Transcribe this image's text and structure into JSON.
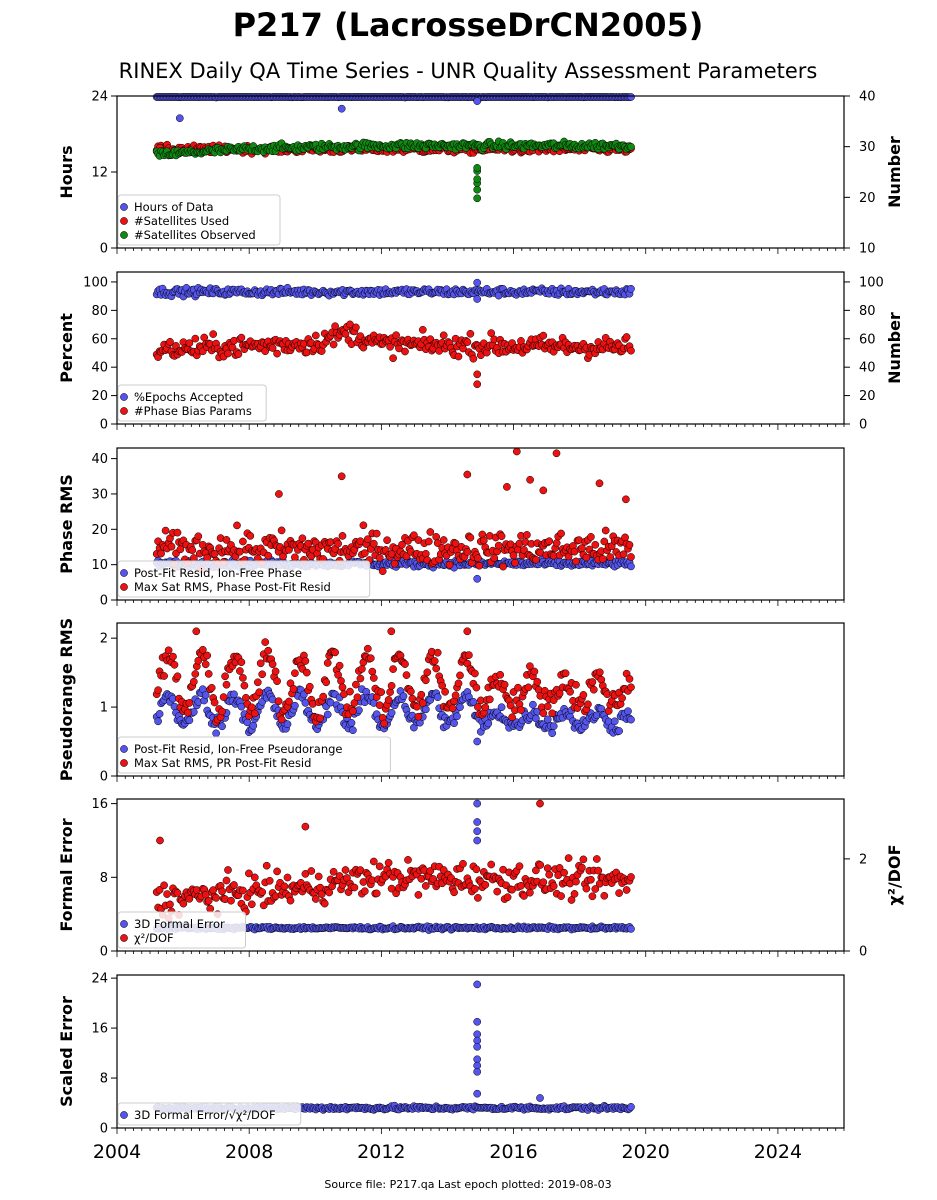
{
  "figure": {
    "title": "P217 (LacrosseDrCN2005)",
    "subtitle": "RINEX Daily QA Time Series - UNR Quality Assessment Parameters",
    "footer": "Source file: P217.qa Last epoch plotted: 2019-08-03",
    "x_ticks": [
      "2004",
      "2008",
      "2012",
      "2016",
      "2020",
      "2024"
    ]
  },
  "colors": {
    "blue": "#5555ee",
    "red": "#ee1111",
    "green": "#118811",
    "edge": "#000000"
  },
  "chart_data": [
    {
      "type": "scatter",
      "ylabel": "Hours",
      "ylabel_right": "Number",
      "xlim": [
        2004,
        2026
      ],
      "ylim": [
        0,
        24
      ],
      "ylim_right": [
        10,
        40
      ],
      "yticks": [
        "0",
        "12",
        "24"
      ],
      "yticks_right": [
        "10",
        "20",
        "30",
        "40"
      ],
      "legend": "lower-left",
      "series": [
        {
          "name": "Hours of Data",
          "axis": "left",
          "color": "blue",
          "base": 23.9,
          "spread": 0.1,
          "spikes": [
            {
              "x": 2005.9,
              "y": 20.5
            },
            {
              "x": 2010.8,
              "y": 22.0
            },
            {
              "x": 2014.9,
              "y": 23.2
            }
          ]
        },
        {
          "name": "#Satellites Used",
          "axis": "right",
          "color": "red",
          "base": 29.5,
          "spread": 0.7,
          "spikes": [
            {
              "x": 2005.3,
              "y": 29.8
            }
          ]
        },
        {
          "name": "#Satellites Observed",
          "axis": "right",
          "color": "green",
          "trend": [
            [
              2005.2,
              28.4
            ],
            [
              2008,
              29.6
            ],
            [
              2012,
              30.2
            ],
            [
              2019.6,
              30.2
            ]
          ],
          "spread": 0.7,
          "spikes": [
            {
              "x": 2014.9,
              "y": 19.8
            },
            {
              "x": 2014.9,
              "y": 21.5
            },
            {
              "x": 2014.9,
              "y": 22.8
            },
            {
              "x": 2014.9,
              "y": 23.6
            },
            {
              "x": 2014.9,
              "y": 25.2
            },
            {
              "x": 2014.9,
              "y": 25.8
            }
          ]
        }
      ]
    },
    {
      "type": "scatter",
      "ylabel": "Percent",
      "ylabel_right": "Number",
      "xlim": [
        2004,
        2026
      ],
      "ylim": [
        0,
        107
      ],
      "ylim_right": [
        0,
        107
      ],
      "yticks": [
        "0",
        "20",
        "40",
        "60",
        "80",
        "100"
      ],
      "yticks_right": [
        "0",
        "20",
        "40",
        "60",
        "80",
        "100"
      ],
      "legend": "lower-left",
      "series": [
        {
          "name": "%Epochs Accepted",
          "axis": "left",
          "color": "blue",
          "base": 93,
          "spread": 2.5,
          "spikes": [
            {
              "x": 2014.9,
              "y": 99.5
            },
            {
              "x": 2014.9,
              "y": 88
            }
          ]
        },
        {
          "name": "#Phase Bias Params",
          "axis": "left",
          "color": "red",
          "trend": [
            [
              2005.2,
              52
            ],
            [
              2010,
              57
            ],
            [
              2011,
              65
            ],
            [
              2012,
              56
            ],
            [
              2019.6,
              54
            ]
          ],
          "spread": 7,
          "spikes": [
            {
              "x": 2014.9,
              "y": 28
            },
            {
              "x": 2014.9,
              "y": 35
            }
          ]
        }
      ]
    },
    {
      "type": "scatter",
      "ylabel": "Phase RMS",
      "xlim": [
        2004,
        2026
      ],
      "ylim": [
        0,
        43
      ],
      "yticks": [
        "0",
        "10",
        "20",
        "30",
        "40"
      ],
      "legend": "lower-left",
      "series": [
        {
          "name": "Post-Fit Resid, Ion-Free Phase",
          "axis": "left",
          "color": "blue",
          "base": 10.3,
          "spread": 0.9,
          "spikes": [
            {
              "x": 2014.9,
              "y": 6
            }
          ]
        },
        {
          "name": "Max Sat RMS, Phase Post-Fit Resid",
          "axis": "left",
          "color": "red",
          "base": 14.5,
          "spread": 4.5,
          "spikes": [
            {
              "x": 2016.1,
              "y": 42
            },
            {
              "x": 2017.3,
              "y": 41.5
            },
            {
              "x": 2010.8,
              "y": 35
            },
            {
              "x": 2014.6,
              "y": 35.5
            },
            {
              "x": 2016.5,
              "y": 34
            },
            {
              "x": 2018.6,
              "y": 33
            },
            {
              "x": 2015.8,
              "y": 32
            },
            {
              "x": 2016.9,
              "y": 31
            },
            {
              "x": 2019.4,
              "y": 28.5
            },
            {
              "x": 2008.9,
              "y": 30
            }
          ]
        }
      ]
    },
    {
      "type": "scatter",
      "ylabel": "Pseudorange RMS",
      "xlim": [
        2004,
        2026
      ],
      "ylim": [
        0,
        2.22
      ],
      "yticks": [
        "0",
        "1",
        "2"
      ],
      "legend": "lower-left",
      "series": [
        {
          "name": "Post-Fit Resid, Ion-Free Pseudorange",
          "axis": "left",
          "color": "blue",
          "seasonal": [
            0.95,
            0.22
          ],
          "spread": 0.12,
          "spikes": [
            {
              "x": 2014.9,
              "y": 0.5
            }
          ]
        },
        {
          "name": "Max Sat RMS, PR Post-Fit Resid",
          "axis": "left",
          "color": "red",
          "seasonal": [
            1.35,
            0.4
          ],
          "spread": 0.2,
          "spikes": [
            {
              "x": 2006.4,
              "y": 2.1
            },
            {
              "x": 2012.3,
              "y": 2.1
            },
            {
              "x": 2014.6,
              "y": 2.1
            }
          ]
        }
      ]
    },
    {
      "type": "scatter",
      "ylabel": "Formal Error",
      "ylabel_right": "χ²/DOF",
      "xlim": [
        2004,
        2026
      ],
      "ylim": [
        0,
        16.5
      ],
      "ylim_right": [
        0,
        3.3
      ],
      "yticks": [
        "0",
        "8",
        "16"
      ],
      "yticks_right": [
        "0",
        "2"
      ],
      "legend": "lower-left",
      "series": [
        {
          "name": "3D Formal Error",
          "axis": "left",
          "color": "blue",
          "base": 2.5,
          "spread": 0.15,
          "spikes": [
            {
              "x": 2014.9,
              "y": 16
            },
            {
              "x": 2014.9,
              "y": 14
            },
            {
              "x": 2014.9,
              "y": 13
            },
            {
              "x": 2014.9,
              "y": 12
            }
          ]
        },
        {
          "name": "χ²/DOF",
          "axis": "right",
          "color": "red",
          "trend": [
            [
              2005.2,
              1.1
            ],
            [
              2010,
              1.4
            ],
            [
              2012,
              1.6
            ],
            [
              2019.6,
              1.5
            ]
          ],
          "spread": 0.35,
          "spikes": [
            {
              "x": 2016.8,
              "y": 3.2
            },
            {
              "x": 2009.7,
              "y": 2.7
            },
            {
              "x": 2005.3,
              "y": 2.4
            }
          ]
        }
      ]
    },
    {
      "type": "scatter",
      "ylabel": "Scaled Error",
      "xlim": [
        2004,
        2026
      ],
      "ylim": [
        0,
        24.5
      ],
      "yticks": [
        "0",
        "8",
        "16",
        "24"
      ],
      "legend": "lower-left",
      "series": [
        {
          "name": "3D Formal Error/√χ²/DOF",
          "axis": "left",
          "color": "blue",
          "base": 3.2,
          "spread": 0.3,
          "spikes": [
            {
              "x": 2014.9,
              "y": 23
            },
            {
              "x": 2014.9,
              "y": 17
            },
            {
              "x": 2014.9,
              "y": 15
            },
            {
              "x": 2014.9,
              "y": 14
            },
            {
              "x": 2014.9,
              "y": 13
            },
            {
              "x": 2014.9,
              "y": 11
            },
            {
              "x": 2014.9,
              "y": 10
            },
            {
              "x": 2014.9,
              "y": 9
            },
            {
              "x": 2014.9,
              "y": 5.5
            },
            {
              "x": 2016.8,
              "y": 4.8
            }
          ]
        }
      ]
    }
  ]
}
